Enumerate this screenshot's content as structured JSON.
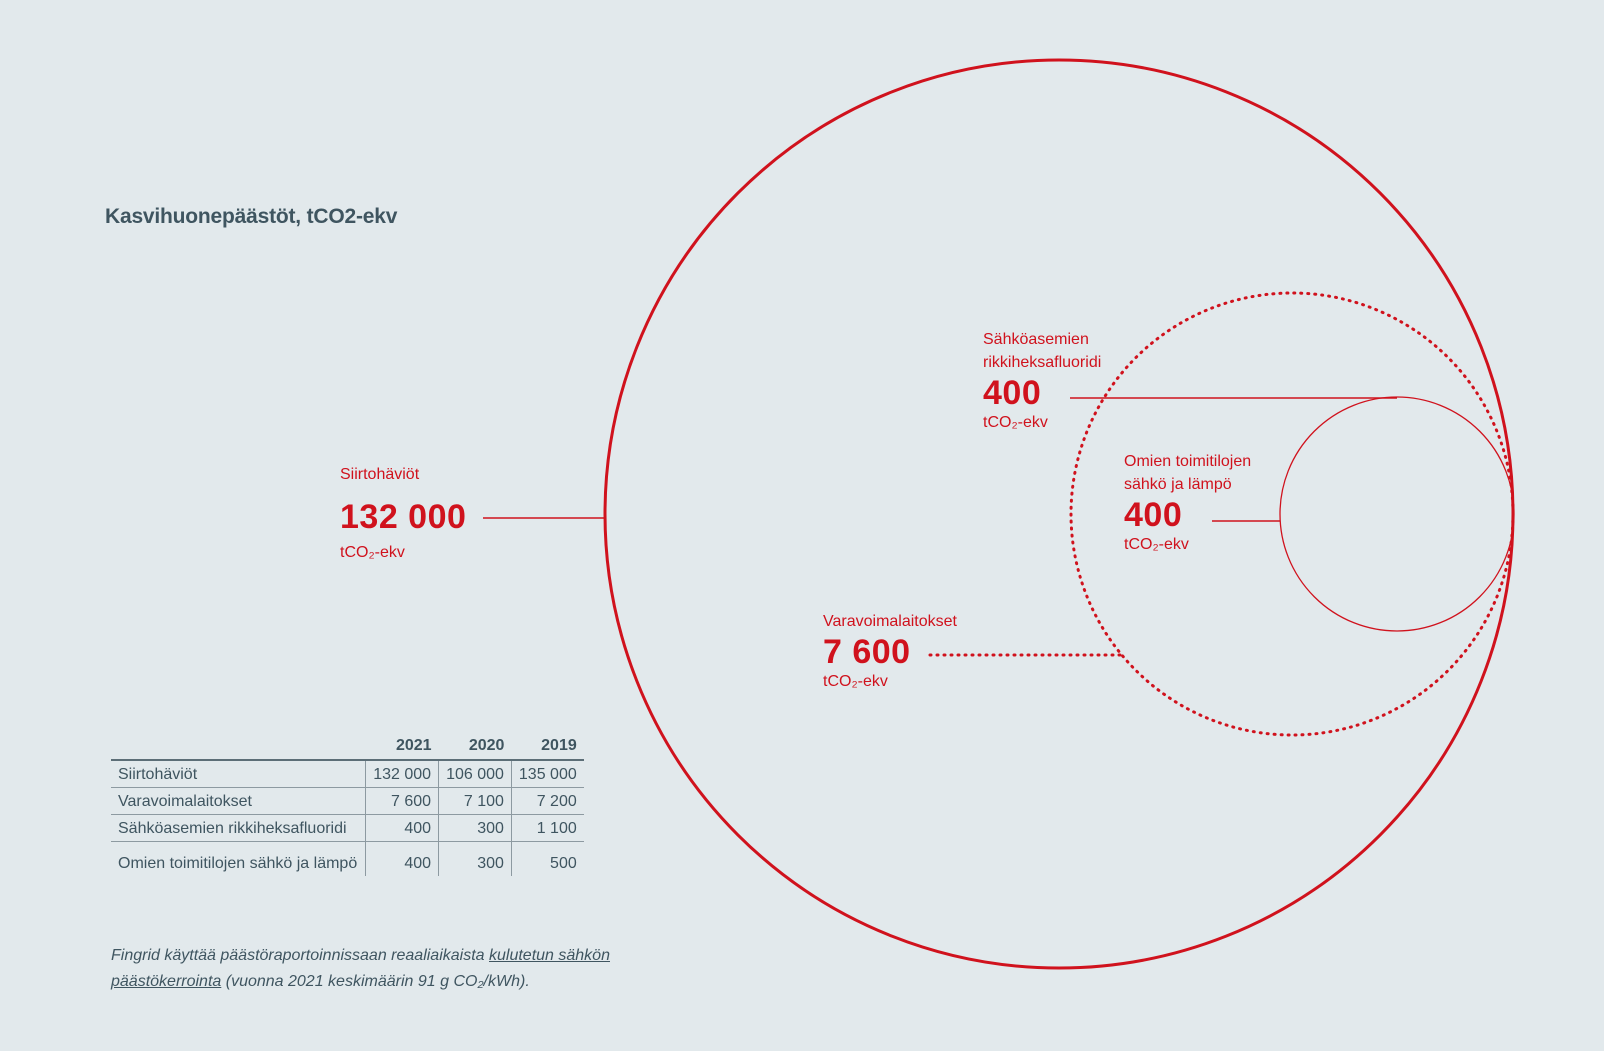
{
  "title": "Kasvihuonepäästöt, tCO2-ekv",
  "colors": {
    "accent": "#d0121d",
    "text": "#3f5560",
    "background": "#e2e9ec"
  },
  "chart_data": {
    "type": "bubble",
    "items": [
      {
        "name": "Siirtohäviöt",
        "value_label": "132 000",
        "value": 132000,
        "unit": "tCO₂-ekv",
        "line": "solid"
      },
      {
        "name": "Varavoimalaitokset",
        "value_label": "7 600",
        "value": 7600,
        "unit": "tCO₂-ekv",
        "line": "dotted"
      },
      {
        "name": "Sähköasemien rikkiheksafluoridi",
        "value_label": "400",
        "value": 400,
        "unit": "tCO₂-ekv",
        "line": "solid"
      },
      {
        "name": "Omien toimitilojen sähkö ja lämpö",
        "value_label": "400",
        "value": 400,
        "unit": "tCO₂-ekv",
        "line": "solid"
      }
    ]
  },
  "table": {
    "headers": [
      "",
      "2021",
      "2020",
      "2019"
    ],
    "rows": [
      {
        "label": "Siirtohäviöt",
        "values": [
          "132 000",
          "106 000",
          "135 000"
        ]
      },
      {
        "label": "Varavoimalaitokset",
        "values": [
          "7 600",
          "7 100",
          "7 200"
        ]
      },
      {
        "label": "Sähköasemien rikkiheksafluoridi",
        "values": [
          "400",
          "300",
          "1 100"
        ]
      },
      {
        "label": "Omien toimitilojen sähkö ja lämpö",
        "values": [
          "400",
          "300",
          "500"
        ]
      }
    ]
  },
  "footnote": {
    "before": "Fingrid käyttää päästöraportoinnissaan reaaliaikaista ",
    "link": "kulutetun sähkön päästökerrointa",
    "after": " (vuonna 2021 keskimäärin 91 g CO₂/kWh)."
  }
}
